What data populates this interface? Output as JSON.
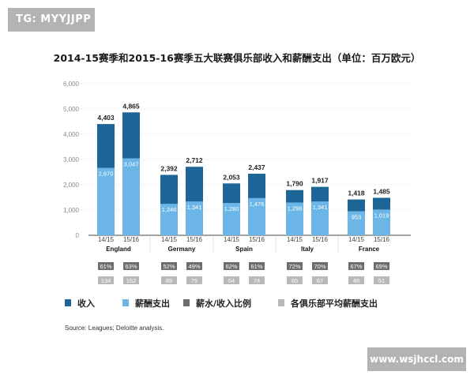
{
  "watermark": {
    "tag": "TG: MYYJJPP",
    "site": "www.wsjhccl.com"
  },
  "colors": {
    "revenue": "#1d6596",
    "wages": "#6bb6e6",
    "ratio_box": "#6d6d6d",
    "avg_box": "#b9b9b9",
    "grid": "#dcdcdc",
    "baseline": "#4a4a4a"
  },
  "chart_data": {
    "type": "bar",
    "title": "2014-15赛季和2015-16赛季五大联赛俱乐部收入和薪酬支出（单位：百万欧元）",
    "ylim": [
      0,
      6000
    ],
    "yticks": [
      "0",
      "1,000",
      "2,000",
      "3,000",
      "4,000",
      "5,000",
      "6,000"
    ],
    "yticks_values": [
      0,
      1000,
      2000,
      3000,
      4000,
      5000,
      6000
    ],
    "groups": [
      {
        "name": "England",
        "seasons": [
          "14/15",
          "15/16"
        ],
        "revenue": [
          4403,
          4865
        ],
        "revenue_labels": [
          "4,403",
          "4,865"
        ],
        "wages": [
          2670,
          3047
        ],
        "wages_labels": [
          "2,670",
          "3,047"
        ],
        "ratio": [
          "61%",
          "63%"
        ],
        "avg_wages": [
          "134",
          "152"
        ]
      },
      {
        "name": "Germany",
        "seasons": [
          "14/15",
          "15/16"
        ],
        "revenue": [
          2392,
          2712
        ],
        "revenue_labels": [
          "2,392",
          "2,712"
        ],
        "wages": [
          1246,
          1341
        ],
        "wages_labels": [
          "1,246",
          "1,341"
        ],
        "ratio": [
          "52%",
          "49%"
        ],
        "avg_wages": [
          "69",
          "75"
        ]
      },
      {
        "name": "Spain",
        "seasons": [
          "14/15",
          "15/16"
        ],
        "revenue": [
          2053,
          2437
        ],
        "revenue_labels": [
          "2,053",
          "2,437"
        ],
        "wages": [
          1280,
          1476
        ],
        "wages_labels": [
          "1,280",
          "1,476"
        ],
        "ratio": [
          "62%",
          "61%"
        ],
        "avg_wages": [
          "64",
          "74"
        ]
      },
      {
        "name": "Italy",
        "seasons": [
          "14/15",
          "15/16"
        ],
        "revenue": [
          1790,
          1917
        ],
        "revenue_labels": [
          "1,790",
          "1,917"
        ],
        "wages": [
          1298,
          1341
        ],
        "wages_labels": [
          "1,298",
          "1,341"
        ],
        "ratio": [
          "72%",
          "70%"
        ],
        "avg_wages": [
          "65",
          "67"
        ]
      },
      {
        "name": "France",
        "seasons": [
          "14/15",
          "15/16"
        ],
        "revenue": [
          1418,
          1485
        ],
        "revenue_labels": [
          "1,418",
          "1,485"
        ],
        "wages": [
          953,
          1019
        ],
        "wages_labels": [
          "953",
          "1,019"
        ],
        "ratio": [
          "67%",
          "69%"
        ],
        "avg_wages": [
          "48",
          "51"
        ]
      }
    ],
    "legend": [
      "收入",
      "薪酬支出",
      "薪水/收入比例",
      "各俱乐部平均薪酬支出"
    ],
    "source": "Source: Leagues; Deloitte analysis."
  }
}
